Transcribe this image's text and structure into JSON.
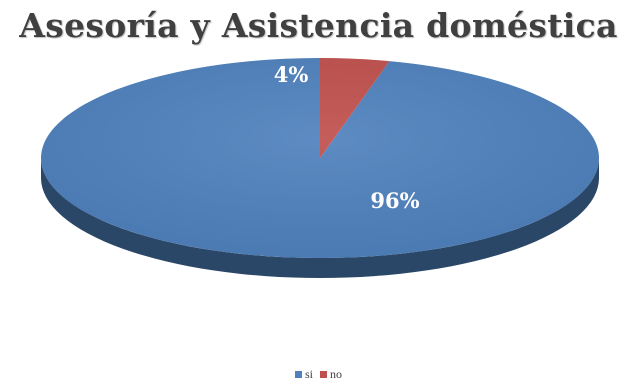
{
  "chart_data": {
    "type": "pie",
    "title": "Asesoría y Asistencia doméstica",
    "categories": [
      "si",
      "no"
    ],
    "values": [
      96,
      4
    ],
    "data_labels": [
      "96%",
      "4%"
    ],
    "colors": [
      "#4f81bd",
      "#c0504d"
    ],
    "legend_position": "bottom"
  }
}
